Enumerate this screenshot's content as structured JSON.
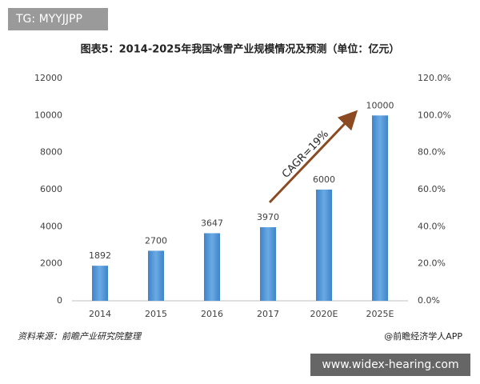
{
  "badge": "TG: MYYJJPP",
  "chart_data": {
    "type": "bar",
    "title": "图表5：2014-2025年我国冰雪产业规模情况及预测（单位：亿元）",
    "categories": [
      "2014",
      "2015",
      "2016",
      "2017",
      "2020E",
      "2025E"
    ],
    "values": [
      1892,
      2700,
      3647,
      3970,
      6000,
      10000
    ],
    "color": "#5b9bd5",
    "ylim": [
      0,
      12000
    ],
    "yticks": [
      0,
      2000,
      4000,
      6000,
      8000,
      10000,
      12000
    ],
    "y2lim": [
      0,
      120
    ],
    "y2ticks": [
      {
        "value": 0,
        "label": "0.0%"
      },
      {
        "value": 20,
        "label": "20.0%"
      },
      {
        "value": 40,
        "label": "40.0%"
      },
      {
        "value": 60,
        "label": "60.0%"
      },
      {
        "value": 80,
        "label": "80.0%"
      },
      {
        "value": 100,
        "label": "100.0%"
      },
      {
        "value": 120,
        "label": "120.0%"
      }
    ],
    "annotation": "CAGR=19%",
    "grid": false
  },
  "source": "资料来源：前瞻产业研究院整理",
  "credit": "@前瞻经济学人APP",
  "watermark": "www.widex-hearing.com"
}
